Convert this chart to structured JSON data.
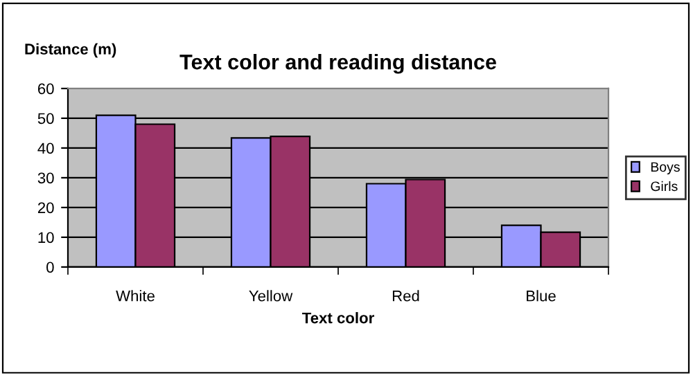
{
  "chart_data": {
    "type": "bar",
    "title": "Text color and reading distance",
    "xlabel": "Text color",
    "ylabel": "Distance (m)",
    "categories": [
      "White",
      "Yellow",
      "Red",
      "Blue"
    ],
    "series": [
      {
        "name": "Boys",
        "color": "#9999ff",
        "values": [
          51,
          43.4,
          28,
          14
        ]
      },
      {
        "name": "Girls",
        "color": "#993366",
        "values": [
          48,
          43.9,
          29.4,
          11.7
        ]
      }
    ],
    "ylim": [
      0,
      60
    ],
    "yticks": [
      0,
      10,
      20,
      30,
      40,
      50,
      60
    ],
    "grid": "y",
    "legend": "right"
  }
}
